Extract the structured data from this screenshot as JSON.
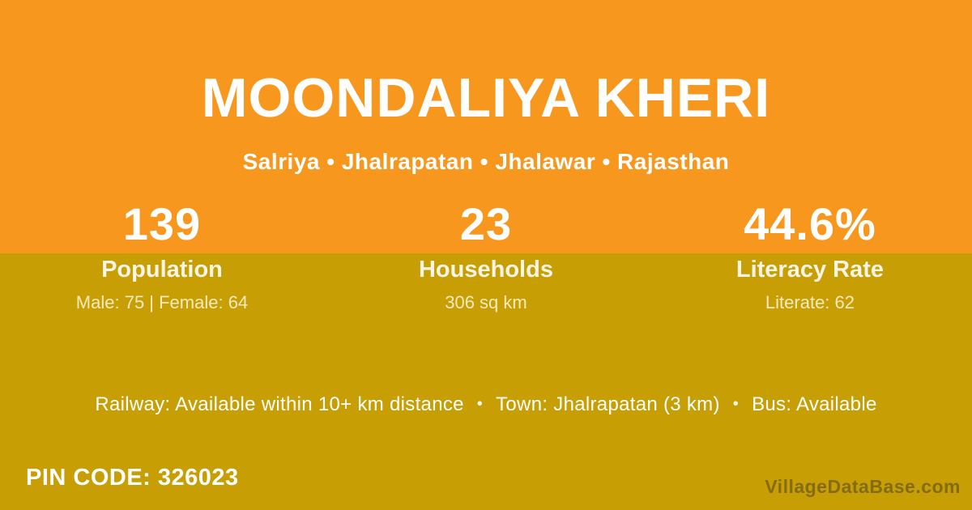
{
  "colors": {
    "top_background": "#F8971D",
    "bottom_background": "#C79E04",
    "text_primary": "#FFFFFF",
    "text_muted_cream": "#F3E5BD",
    "watermark_gray": "#8D8663"
  },
  "header": {
    "title": "MOONDALIYA KHERI",
    "breadcrumb": "Salriya • Jhalrapatan • Jhalawar • Rajasthan"
  },
  "stats": [
    {
      "value": "139",
      "label": "Population",
      "detail": "Male: 75 | Female: 64"
    },
    {
      "value": "23",
      "label": "Households",
      "detail": "306 sq km"
    },
    {
      "value": "44.6%",
      "label": "Literacy Rate",
      "detail": "Literate: 62"
    }
  ],
  "transport": {
    "separator": "•",
    "items": [
      "Railway: Available within 10+ km distance",
      "Town: Jhalrapatan (3 km)",
      "Bus: Available"
    ]
  },
  "footer": {
    "pin_code": "PIN CODE: 326023",
    "watermark": "VillageDataBase.com"
  }
}
